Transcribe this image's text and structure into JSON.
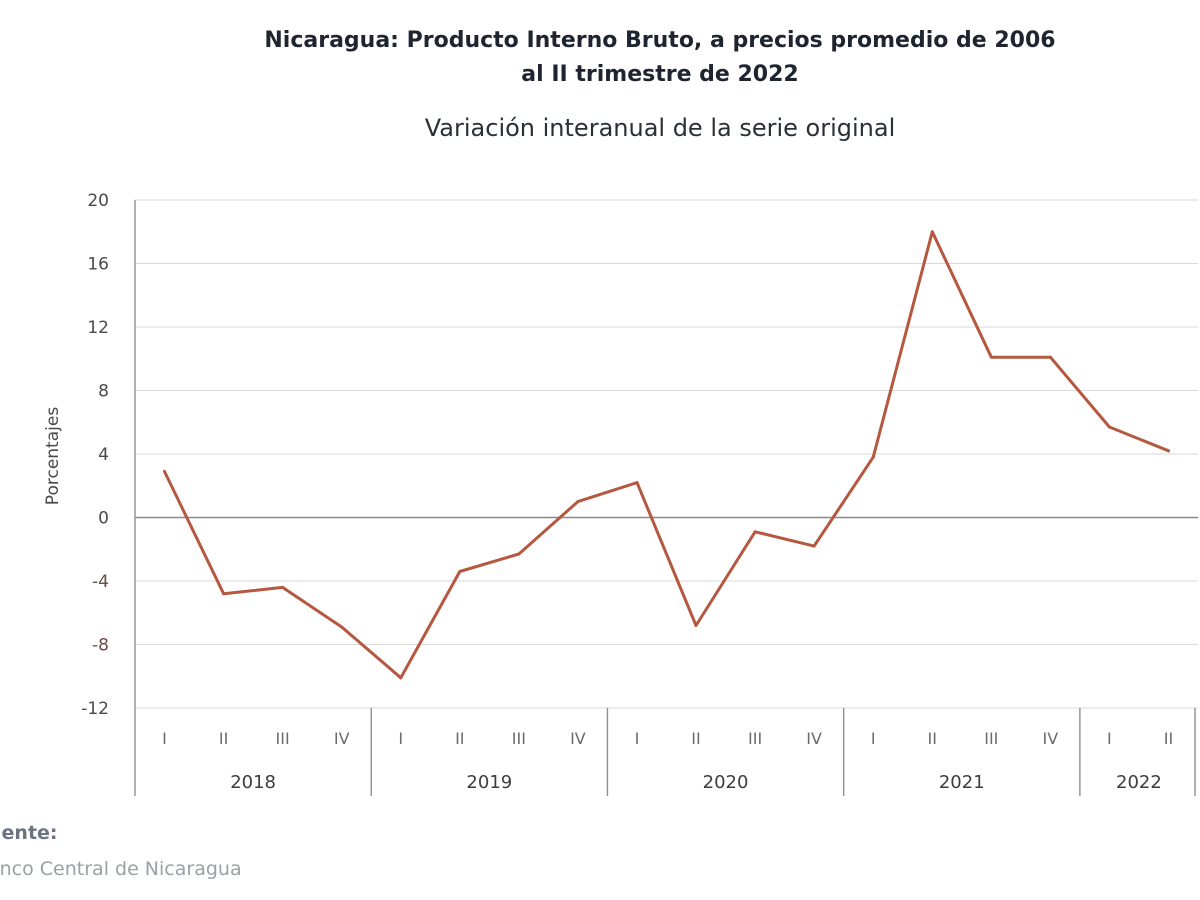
{
  "title_lines": [
    "Nicaragua: Producto Interno Bruto, a precios promedio de 2006",
    "al II trimestre de 2022"
  ],
  "subtitle": "Variación interanual de la serie original",
  "source": {
    "label": "uente:",
    "text": "anco Central de Nicaragua"
  },
  "colors": {
    "line": "#b5583f",
    "grid": "#d9d9d9",
    "zero_line": "#8a8a8a",
    "axis": "#8f8f8f"
  },
  "chart_data": {
    "type": "line",
    "title": "Nicaragua: Producto Interno Bruto, a precios promedio de 2006 al II trimestre de 2022",
    "subtitle": "Variación interanual de la serie original",
    "ylabel": "Porcentajes",
    "xlabel": "",
    "ylim": [
      -12,
      20
    ],
    "yticks": [
      "20",
      "16",
      "12",
      "8",
      "4",
      "0",
      "-4",
      "-8",
      "-12"
    ],
    "grid": true,
    "categories": [
      "I",
      "II",
      "III",
      "IV",
      "I",
      "II",
      "III",
      "IV",
      "I",
      "II",
      "III",
      "IV",
      "I",
      "II",
      "III",
      "IV",
      "I",
      "II"
    ],
    "groups": [
      {
        "label": "2018",
        "count": 4
      },
      {
        "label": "2019",
        "count": 4
      },
      {
        "label": "2020",
        "count": 4
      },
      {
        "label": "2021",
        "count": 4
      },
      {
        "label": "2022",
        "count": 2
      }
    ],
    "series": [
      {
        "values": [
          2.9,
          -4.8,
          -4.4,
          -6.9,
          -10.1,
          -3.4,
          -2.3,
          1.0,
          2.2,
          -6.8,
          -0.9,
          -1.8,
          3.8,
          18.0,
          10.1,
          10.1,
          5.7,
          4.2
        ]
      }
    ]
  }
}
